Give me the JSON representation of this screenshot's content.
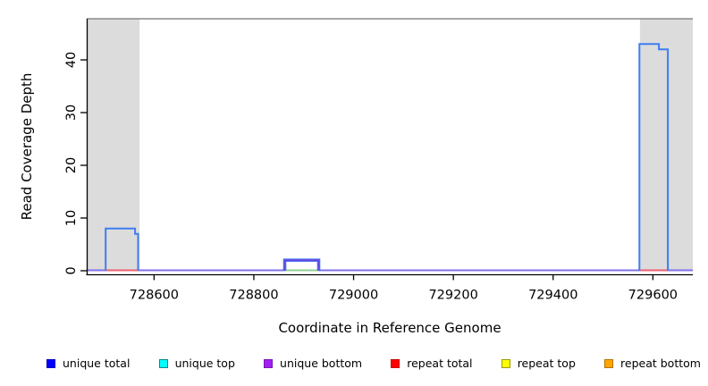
{
  "chart_data": {
    "type": "line",
    "subtype": "step-coverage-plot",
    "title": "",
    "xlabel": "Coordinate in Reference Genome",
    "ylabel": "Read Coverage Depth",
    "xlim": [
      728465,
      729680
    ],
    "ylim": [
      0,
      47.8
    ],
    "x_ticks": [
      728600,
      728800,
      729000,
      729200,
      729400,
      729600
    ],
    "y_ticks": [
      0,
      10,
      20,
      30,
      40
    ],
    "grid": false,
    "legend_position": "bottom",
    "colors": {
      "unique_total_line": "#3f7df2",
      "unique_bottom_line": "#6b46e5",
      "baseline_unique_bottom": "#8172ea",
      "baseline_repeat_total": "#f06070",
      "baseline_unique_top_repeat_top": "#90d290",
      "shaded_band": "#dcdcdc",
      "top_border": "#8a8a8a",
      "axis": "#000000"
    },
    "shaded_regions": [
      {
        "x1": 728465,
        "x2": 728571
      },
      {
        "x1": 729574,
        "x2": 729680
      }
    ],
    "features": [
      {
        "series": "unique total",
        "color_key": "unique_total_line",
        "halo": false,
        "segments": [
          {
            "x1": 728503,
            "x2": 728562,
            "y": 8
          },
          {
            "x1": 728562,
            "x2": 728568,
            "y": 7
          }
        ]
      },
      {
        "series": "unique total + unique bottom",
        "color_key": "unique_bottom_line",
        "halo": true,
        "segments": [
          {
            "x1": 728862,
            "x2": 728930,
            "y": 2
          }
        ]
      },
      {
        "series": "unique total",
        "color_key": "unique_total_line",
        "halo": false,
        "segments": [
          {
            "x1": 729573,
            "x2": 729612,
            "y": 43
          },
          {
            "x1": 729612,
            "x2": 729630,
            "y": 42
          }
        ]
      }
    ],
    "baseline_segments": [
      {
        "x1": 728465,
        "x2": 729680,
        "color": "#8172ea"
      },
      {
        "x1": 728503,
        "x2": 728570,
        "color": "#f06070"
      },
      {
        "x1": 728862,
        "x2": 728930,
        "color": "#90d290"
      },
      {
        "x1": 729573,
        "x2": 729630,
        "color": "#f06070"
      }
    ],
    "legend": [
      {
        "label": "unique total",
        "fill": "#0000ff",
        "border": "#0000bb"
      },
      {
        "label": "unique top",
        "fill": "#00ffff",
        "border": "#008b8b"
      },
      {
        "label": "unique bottom",
        "fill": "#a020f0",
        "border": "#7817b8"
      },
      {
        "label": "repeat total",
        "fill": "#ff0000",
        "border": "#c40000"
      },
      {
        "label": "repeat top",
        "fill": "#ffff00",
        "border": "#9a9a00"
      },
      {
        "label": "repeat bottom",
        "fill": "#ffa500",
        "border": "#b27300"
      }
    ]
  }
}
